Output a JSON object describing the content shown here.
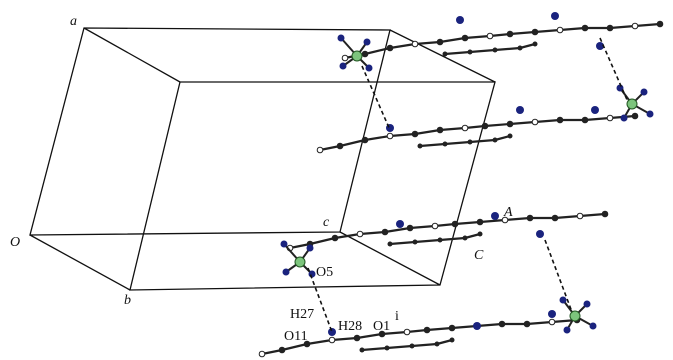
{
  "labels": {
    "a": "a",
    "origin": "O",
    "b": "b",
    "c": "c",
    "A": "A",
    "C": "C",
    "O5": "O5",
    "H27": "H27",
    "H28": "H28",
    "O1": "O1",
    "O1_sup": "i",
    "O11": "O11"
  }
}
